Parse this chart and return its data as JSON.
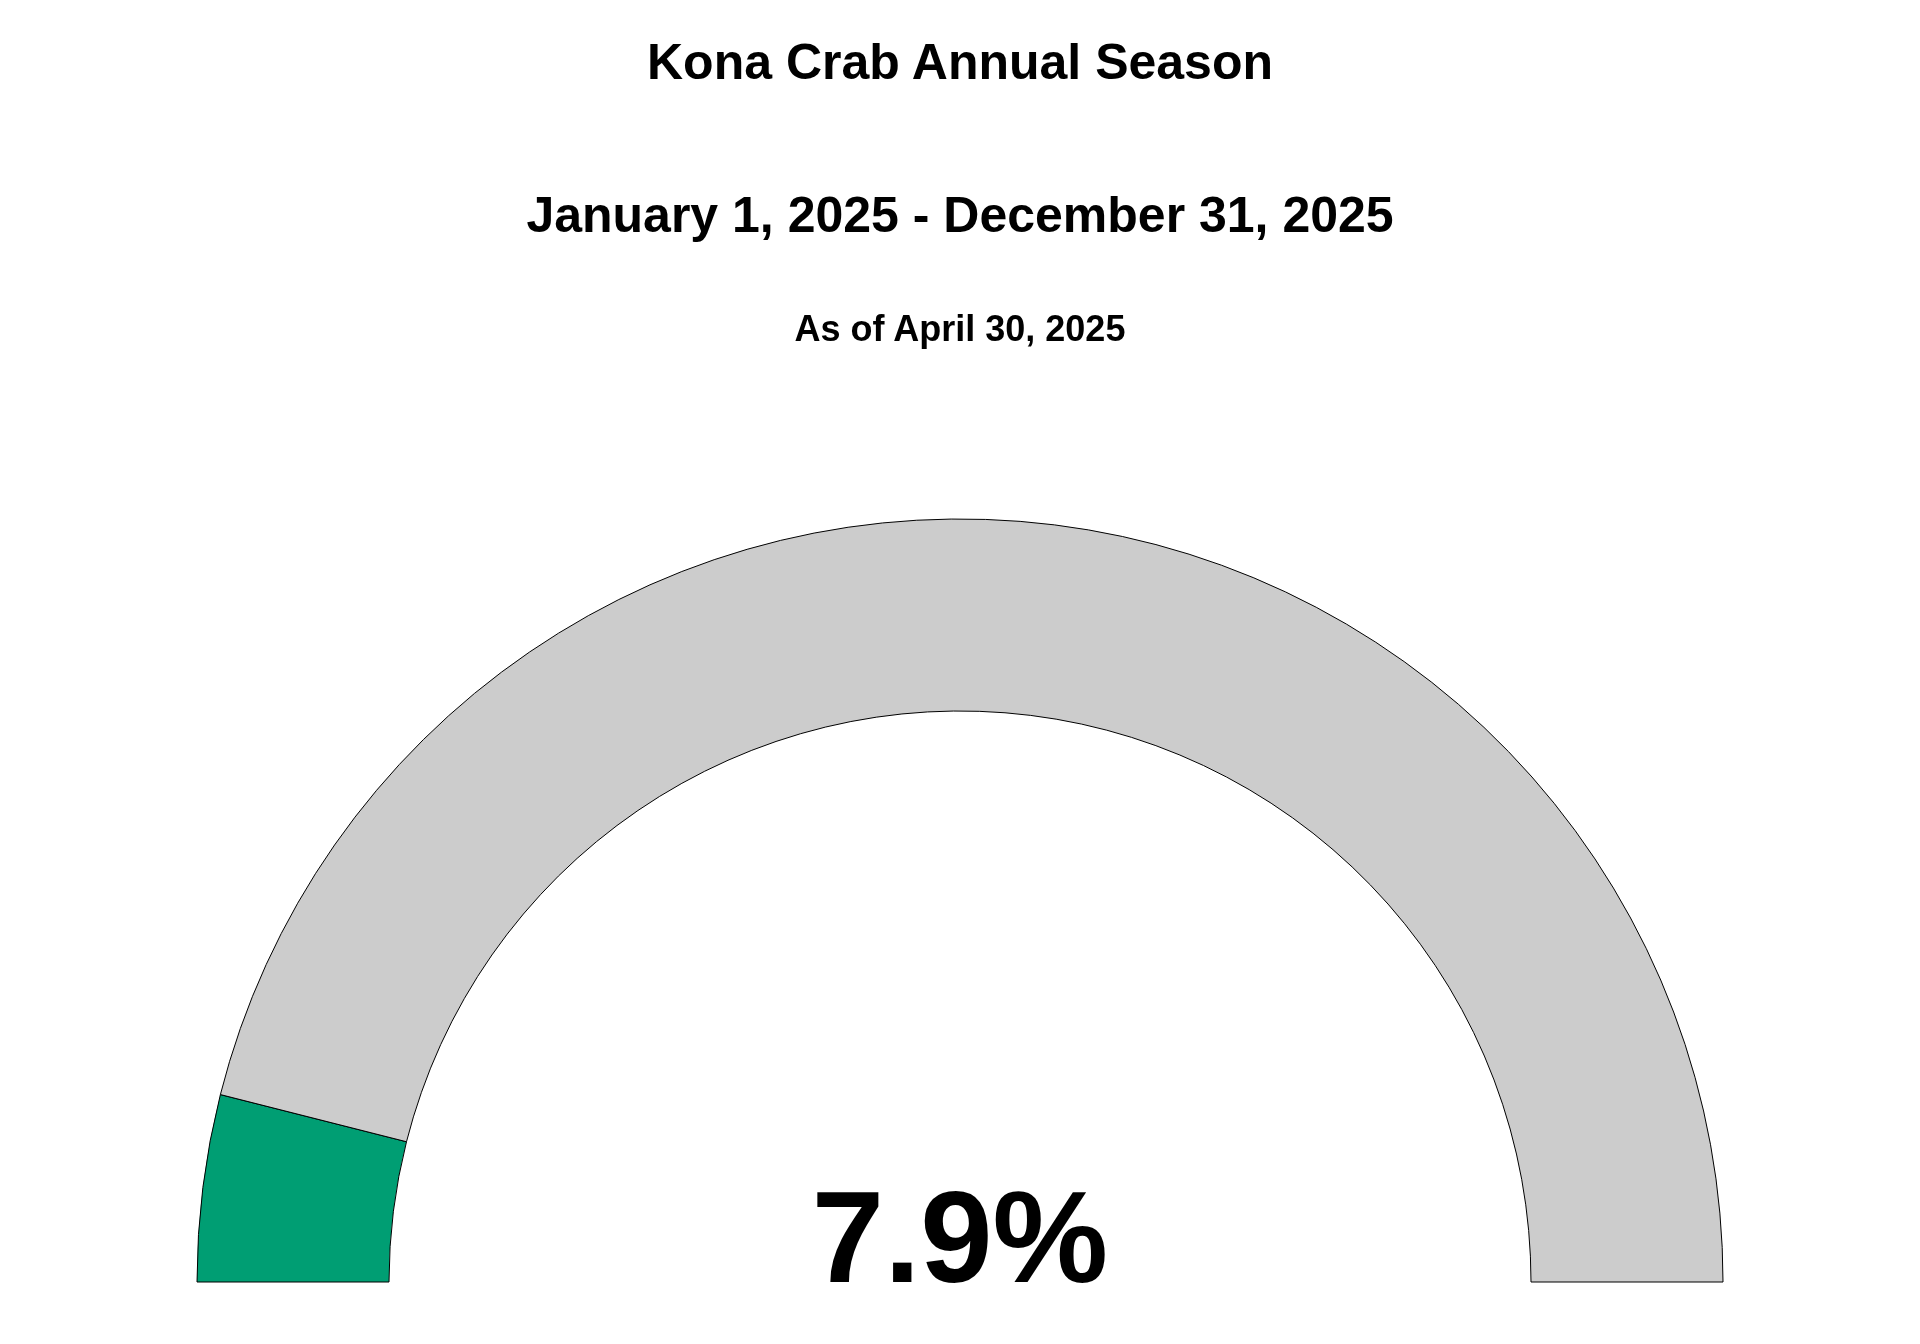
{
  "chart_data": {
    "type": "donut",
    "title": "Kona Crab Annual Season",
    "subtitle": "January 1, 2025 - December 31, 2025",
    "annotations": [
      "As of April 30, 2025",
      "7.9%"
    ],
    "categories": [
      null,
      null
    ],
    "values": [
      7.9,
      92.1
    ],
    "colors": [
      "#009e73",
      "#cccccc"
    ]
  }
}
